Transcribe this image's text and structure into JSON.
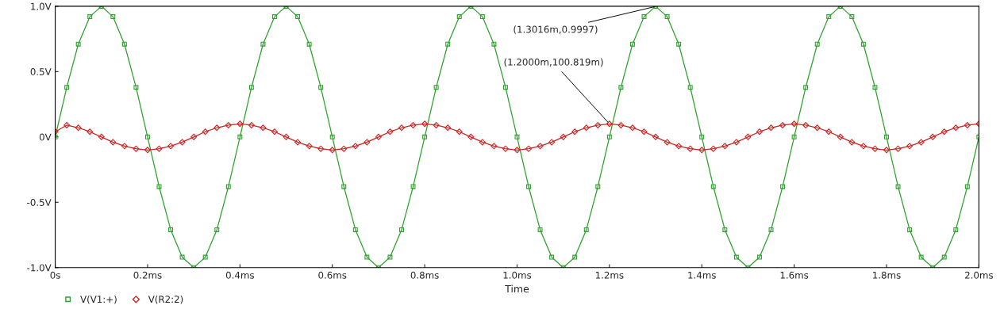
{
  "chart_data": {
    "type": "line",
    "xlabel": "Time",
    "x": [
      0,
      0.025,
      0.05,
      0.075,
      0.1,
      0.125,
      0.15,
      0.175,
      0.2,
      0.225,
      0.25,
      0.275,
      0.3,
      0.325,
      0.35,
      0.375,
      0.4,
      0.425,
      0.45,
      0.475,
      0.5,
      0.525,
      0.55,
      0.575,
      0.6,
      0.625,
      0.65,
      0.675,
      0.7,
      0.725,
      0.75,
      0.775,
      0.8,
      0.825,
      0.85,
      0.875,
      0.9,
      0.925,
      0.95,
      0.975,
      1.0,
      1.025,
      1.05,
      1.075,
      1.1,
      1.125,
      1.15,
      1.175,
      1.2,
      1.225,
      1.25,
      1.275,
      1.3,
      1.325,
      1.35,
      1.375,
      1.4,
      1.425,
      1.45,
      1.475,
      1.5,
      1.525,
      1.55,
      1.575,
      1.6,
      1.625,
      1.65,
      1.675,
      1.7,
      1.725,
      1.75,
      1.775,
      1.8,
      1.825,
      1.85,
      1.875,
      1.9,
      1.925,
      1.95,
      1.975,
      2.0
    ],
    "series": [
      {
        "name": "V(V1:+)",
        "color": "#2ca02c",
        "marker": "square",
        "values": [
          0,
          0.38,
          0.71,
          0.92,
          1,
          0.92,
          0.71,
          0.38,
          0,
          -0.38,
          -0.71,
          -0.92,
          -1,
          -0.92,
          -0.71,
          -0.38,
          0,
          0.38,
          0.71,
          0.92,
          1,
          0.92,
          0.71,
          0.38,
          0,
          -0.38,
          -0.71,
          -0.92,
          -1,
          -0.92,
          -0.71,
          -0.38,
          0,
          0.38,
          0.71,
          0.92,
          1,
          0.92,
          0.71,
          0.38,
          0,
          -0.38,
          -0.71,
          -0.92,
          -1,
          -0.92,
          -0.71,
          -0.38,
          0,
          0.38,
          0.71,
          0.92,
          1,
          0.92,
          0.71,
          0.38,
          0,
          -0.38,
          -0.71,
          -0.92,
          -1,
          -0.92,
          -0.71,
          -0.38,
          0,
          0.38,
          0.71,
          0.92,
          1,
          0.92,
          0.71,
          0.38,
          0,
          -0.38,
          -0.71,
          -0.92,
          -1,
          -0.92,
          -0.71,
          -0.38,
          0
        ]
      },
      {
        "name": "V(R2:2)",
        "color": "#cc2222",
        "marker": "diamond",
        "values": [
          0.04,
          0.09,
          0.07,
          0.04,
          0,
          -0.04,
          -0.07,
          -0.09,
          -0.1,
          -0.09,
          -0.07,
          -0.04,
          0,
          0.04,
          0.07,
          0.09,
          0.1,
          0.09,
          0.07,
          0.04,
          0,
          -0.04,
          -0.07,
          -0.09,
          -0.1,
          -0.09,
          -0.07,
          -0.04,
          0,
          0.04,
          0.07,
          0.09,
          0.1,
          0.09,
          0.07,
          0.04,
          0,
          -0.04,
          -0.07,
          -0.09,
          -0.1,
          -0.09,
          -0.07,
          -0.04,
          0,
          0.04,
          0.07,
          0.09,
          0.1,
          0.09,
          0.07,
          0.04,
          0,
          -0.04,
          -0.07,
          -0.09,
          -0.1,
          -0.09,
          -0.07,
          -0.04,
          0,
          0.04,
          0.07,
          0.09,
          0.1,
          0.09,
          0.07,
          0.04,
          0,
          -0.04,
          -0.07,
          -0.09,
          -0.1,
          -0.09,
          -0.07,
          -0.04,
          0,
          0.04,
          0.07,
          0.09,
          0.1
        ]
      }
    ],
    "annotations": [
      {
        "text": "(1.3016m,0.9997)",
        "x": 1.3016,
        "y": 0.9997
      },
      {
        "text": "(1.2000m,100.819m)",
        "x": 1.2,
        "y": 0.100819
      }
    ],
    "xlim": [
      0,
      2.0
    ],
    "xticks": [
      {
        "value": 0,
        "label": "0s"
      },
      {
        "value": 0.2,
        "label": "0.2ms"
      },
      {
        "value": 0.4,
        "label": "0.4ms"
      },
      {
        "value": 0.6,
        "label": "0.6ms"
      },
      {
        "value": 0.8,
        "label": "0.8ms"
      },
      {
        "value": 1.0,
        "label": "1.0ms"
      },
      {
        "value": 1.2,
        "label": "1.2ms"
      },
      {
        "value": 1.4,
        "label": "1.4ms"
      },
      {
        "value": 1.6,
        "label": "1.6ms"
      },
      {
        "value": 1.8,
        "label": "1.8ms"
      },
      {
        "value": 2.0,
        "label": "2.0ms"
      }
    ],
    "ylim": [
      -1.0,
      1.0
    ],
    "yticks": [
      {
        "value": -1.0,
        "label": "-1.0V"
      },
      {
        "value": -0.5,
        "label": "-0.5V"
      },
      {
        "value": 0,
        "label": "0V"
      },
      {
        "value": 0.5,
        "label": "0.5V"
      },
      {
        "value": 1.0,
        "label": "1.0V"
      }
    ],
    "grid": false,
    "legend": "bottom left"
  }
}
